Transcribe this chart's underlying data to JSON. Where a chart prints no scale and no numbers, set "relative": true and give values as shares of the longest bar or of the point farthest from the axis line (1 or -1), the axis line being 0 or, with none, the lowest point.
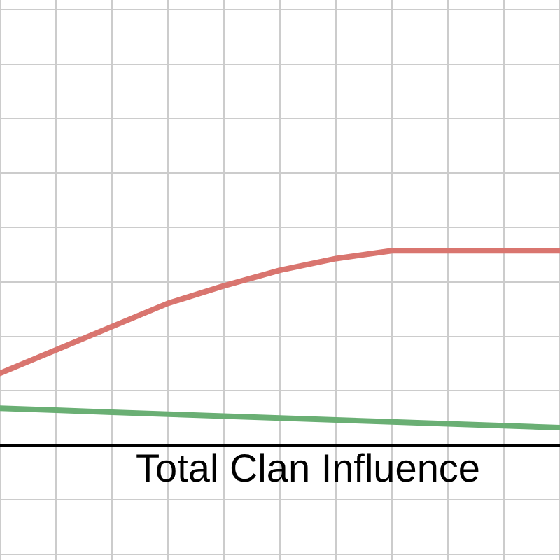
{
  "chart_data": {
    "type": "line",
    "relative": true,
    "xlabel": "Total Clan Influence",
    "grid": true,
    "categories": [
      null,
      null,
      null,
      null,
      null,
      null,
      null,
      null,
      null,
      null,
      null
    ],
    "series": [
      {
        "color": "#d9756f",
        "values": [
          0.37,
          0.49,
          0.61,
          0.73,
          0.82,
          0.9,
          0.96,
          1,
          1,
          1,
          1
        ]
      },
      {
        "color": "#6aaf74",
        "values": [
          0.19,
          0.18,
          0.17,
          0.16,
          0.15,
          0.14,
          0.13,
          0.12,
          0.11,
          0.1,
          0.09
        ]
      }
    ]
  }
}
